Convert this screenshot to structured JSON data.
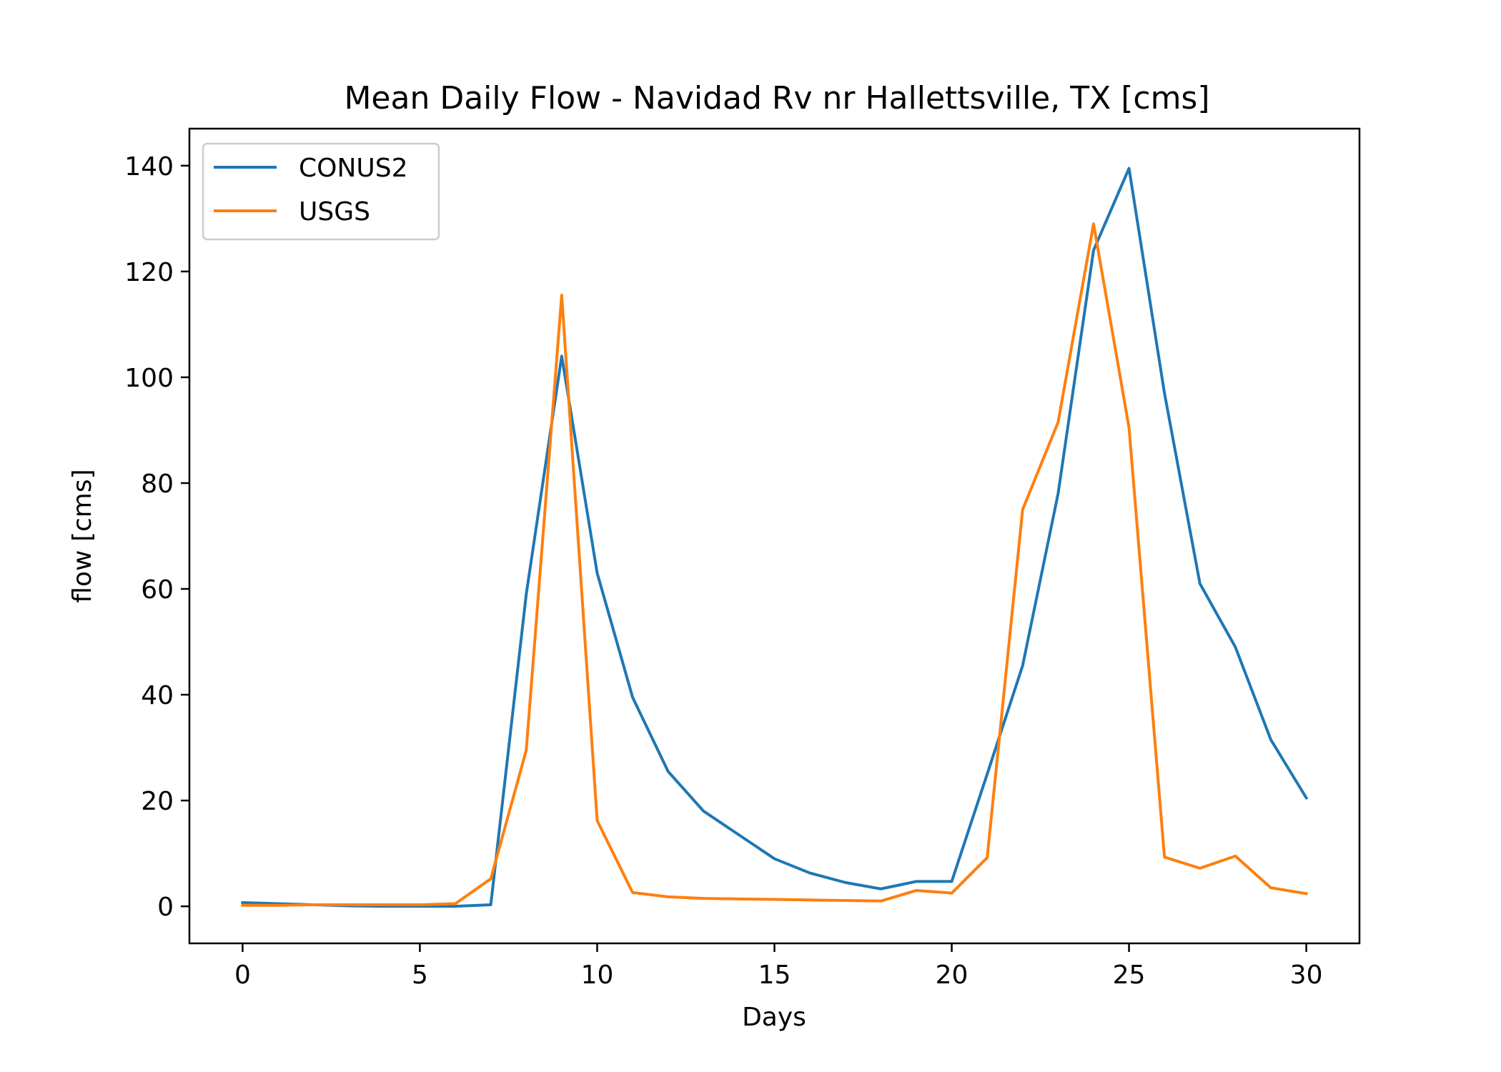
{
  "chart_data": {
    "type": "line",
    "title": "Mean Daily Flow - Navidad Rv nr Hallettsville, TX [cms]",
    "xlabel": "Days",
    "ylabel": "flow [cms]",
    "xlim": [
      -1.5,
      31.5
    ],
    "ylim": [
      -7,
      147
    ],
    "xticks": [
      0,
      5,
      10,
      15,
      20,
      25,
      30
    ],
    "yticks": [
      0,
      20,
      40,
      60,
      80,
      100,
      120,
      140
    ],
    "x": [
      0,
      1,
      2,
      3,
      4,
      5,
      6,
      7,
      8,
      9,
      10,
      11,
      12,
      13,
      14,
      15,
      16,
      17,
      18,
      19,
      20,
      21,
      22,
      23,
      24,
      25,
      26,
      27,
      28,
      29,
      30
    ],
    "legend_position": "upper-left",
    "grid": false,
    "series": [
      {
        "name": "CONUS2",
        "color": "#1f77b4",
        "values": [
          0.7,
          0.5,
          0.3,
          0.1,
          0.0,
          0.0,
          0.0,
          0.3,
          59,
          104,
          63,
          39.5,
          25.5,
          18,
          13.5,
          9,
          6.3,
          4.5,
          3.3,
          4.7,
          4.7,
          25,
          45.5,
          78,
          124,
          139.5,
          97,
          61,
          49,
          31.5,
          20.5
        ]
      },
      {
        "name": "USGS",
        "color": "#ff7f0e",
        "values": [
          0.2,
          0.2,
          0.3,
          0.3,
          0.3,
          0.3,
          0.5,
          5.2,
          29.5,
          115.5,
          16.2,
          2.6,
          1.8,
          1.5,
          1.4,
          1.3,
          1.2,
          1.1,
          1.0,
          3.0,
          2.5,
          9.2,
          75,
          91.5,
          129,
          90.5,
          9.3,
          7.2,
          9.5,
          3.5,
          2.4
        ]
      }
    ]
  }
}
